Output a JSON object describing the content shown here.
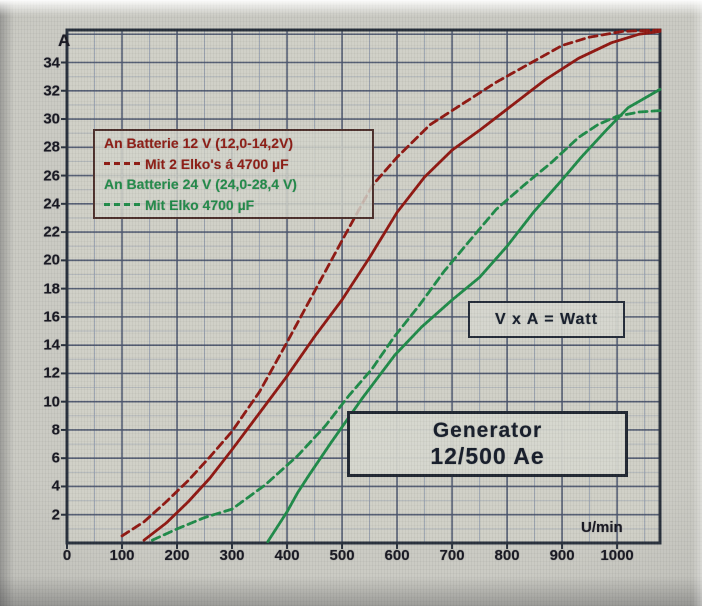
{
  "photo": {
    "paper_color": "#c9c9c2",
    "plot_fill": "#d3d4ca",
    "frame_color": "#262e3a",
    "grid_major_color": "#46506a",
    "grid_minor_color": "#8d99ab",
    "red": "#8f150f",
    "green": "#1d8a47"
  },
  "chart_data": {
    "type": "line",
    "title_box": {
      "line1": "Generator",
      "line2": "12/500 Ae"
    },
    "formula_box": "V x A = Watt",
    "x_unit": "U/min",
    "y_unit": "A",
    "xlim": [
      0,
      1078
    ],
    "ylim": [
      0,
      36.3
    ],
    "grid": {
      "x_major": 100,
      "x_minor": 50,
      "y_major": 2,
      "y_minor": 1,
      "grid_on": true
    },
    "x_ticks": [
      0,
      100,
      200,
      300,
      400,
      500,
      600,
      700,
      800,
      900,
      1000
    ],
    "y_ticks": [
      34,
      32,
      30,
      28,
      26,
      24,
      22,
      20,
      18,
      16,
      14,
      12,
      10,
      8,
      6,
      4,
      2
    ],
    "legend": {
      "position": "upper-left",
      "lines": [
        {
          "text": "An Batterie 12 V (12,0-14,2V)",
          "color": "#8e1a12",
          "dash": false
        },
        {
          "text": "Mit 2 Elko's  á 4700 µF",
          "color": "#8e1a12",
          "dash": true
        },
        {
          "text": "An Batterie 24 V (24,0-28,4 V)",
          "color": "#1f8b48",
          "dash": false
        },
        {
          "text": "Mit Elko 4700 µF",
          "color": "#1f8b48",
          "dash": true
        }
      ]
    },
    "series": [
      {
        "name": "An Batterie 12 V (12,0-14,2V)",
        "color": "#8f150f",
        "dash": false,
        "points": [
          [
            140,
            0.2
          ],
          [
            180,
            1.4
          ],
          [
            220,
            2.9
          ],
          [
            260,
            4.6
          ],
          [
            300,
            6.6
          ],
          [
            350,
            9.2
          ],
          [
            400,
            11.8
          ],
          [
            450,
            14.6
          ],
          [
            500,
            17.2
          ],
          [
            550,
            20.2
          ],
          [
            600,
            23.4
          ],
          [
            650,
            25.9
          ],
          [
            700,
            27.8
          ],
          [
            750,
            29.2
          ],
          [
            810,
            31.0
          ],
          [
            870,
            32.8
          ],
          [
            930,
            34.3
          ],
          [
            990,
            35.4
          ],
          [
            1040,
            36.0
          ],
          [
            1078,
            36.2
          ]
        ]
      },
      {
        "name": "Mit 2 Elko's á 4700 µF",
        "color": "#8f150f",
        "dash": true,
        "points": [
          [
            100,
            0.5
          ],
          [
            140,
            1.5
          ],
          [
            180,
            2.9
          ],
          [
            220,
            4.4
          ],
          [
            260,
            6.1
          ],
          [
            300,
            7.9
          ],
          [
            350,
            10.7
          ],
          [
            400,
            14.2
          ],
          [
            450,
            17.8
          ],
          [
            500,
            21.4
          ],
          [
            555,
            25.3
          ],
          [
            600,
            27.3
          ],
          [
            660,
            29.6
          ],
          [
            720,
            31.1
          ],
          [
            780,
            32.6
          ],
          [
            840,
            33.9
          ],
          [
            900,
            35.2
          ],
          [
            950,
            35.8
          ],
          [
            1010,
            36.2
          ],
          [
            1078,
            36.3
          ]
        ]
      },
      {
        "name": "An Batterie 24 V (24,0-28,4 V)",
        "color": "#1d8a47",
        "dash": false,
        "points": [
          [
            365,
            0.1
          ],
          [
            400,
            2.2
          ],
          [
            420,
            3.6
          ],
          [
            440,
            4.8
          ],
          [
            480,
            7.1
          ],
          [
            536,
            10.2
          ],
          [
            596,
            13.3
          ],
          [
            645,
            15.3
          ],
          [
            700,
            17.2
          ],
          [
            750,
            18.8
          ],
          [
            800,
            21.0
          ],
          [
            850,
            23.5
          ],
          [
            900,
            25.7
          ],
          [
            935,
            27.3
          ],
          [
            980,
            29.2
          ],
          [
            1020,
            30.8
          ],
          [
            1078,
            32.1
          ]
        ]
      },
      {
        "name": "Mit Elko 4700 µF",
        "color": "#1d8a47",
        "dash": true,
        "points": [
          [
            155,
            0.2
          ],
          [
            200,
            1.0
          ],
          [
            250,
            1.8
          ],
          [
            300,
            2.4
          ],
          [
            360,
            4.1
          ],
          [
            420,
            6.2
          ],
          [
            470,
            8.3
          ],
          [
            512,
            10.4
          ],
          [
            554,
            12.3
          ],
          [
            595,
            14.6
          ],
          [
            640,
            16.8
          ],
          [
            685,
            19.2
          ],
          [
            730,
            21.3
          ],
          [
            780,
            23.6
          ],
          [
            830,
            25.3
          ],
          [
            880,
            26.9
          ],
          [
            930,
            28.7
          ],
          [
            965,
            29.6
          ],
          [
            1000,
            30.2
          ],
          [
            1040,
            30.5
          ],
          [
            1078,
            30.6
          ]
        ]
      }
    ]
  }
}
